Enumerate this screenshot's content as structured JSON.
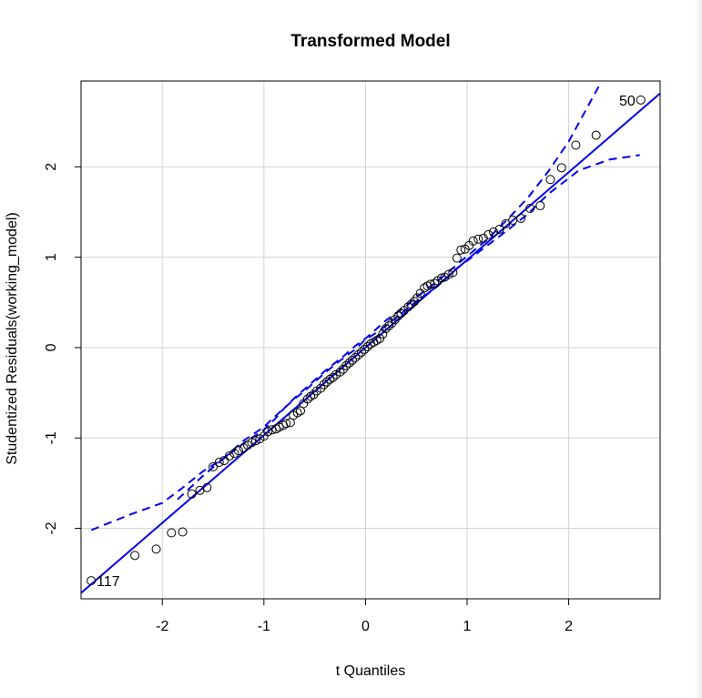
{
  "chart_data": {
    "type": "scatter",
    "title": "Transformed Model",
    "xlabel": "t Quantiles",
    "ylabel": "Studentized Residuals(working_model)",
    "xlim": [
      -2.8,
      2.9
    ],
    "ylim": [
      -2.78,
      2.95
    ],
    "xticks": [
      -2,
      -1,
      0,
      1,
      2
    ],
    "yticks": [
      -2,
      -1,
      0,
      1,
      2
    ],
    "grid": true,
    "colors": {
      "points": "#000000",
      "reference": "#0000ee",
      "envelope": "#0000ee",
      "grid": "#d3d3d3"
    },
    "reference_line": {
      "intercept": 0.0,
      "slope": 0.97
    },
    "envelope_upper": {
      "x": [
        -1.85,
        -1.6,
        -1.4,
        -1.2,
        -1.0,
        -0.9,
        -0.8,
        -0.7,
        -0.6,
        -0.5,
        -0.4,
        -0.3,
        -0.2,
        -0.1,
        0.0,
        0.1,
        0.2,
        0.3,
        0.4,
        0.5,
        0.6,
        0.7,
        0.8,
        0.9,
        1.0,
        1.2,
        1.4,
        1.6,
        1.8,
        2.0,
        2.3
      ],
      "y": [
        -1.68,
        -1.42,
        -1.23,
        -1.06,
        -0.91,
        -0.8,
        -0.67,
        -0.56,
        -0.46,
        -0.36,
        -0.26,
        -0.17,
        -0.08,
        0.02,
        0.1,
        0.2,
        0.3,
        0.38,
        0.46,
        0.56,
        0.64,
        0.73,
        0.82,
        0.92,
        1.01,
        1.2,
        1.42,
        1.66,
        1.95,
        2.28,
        2.9
      ]
    },
    "envelope_lower": {
      "x": [
        -2.7,
        -2.3,
        -2.0,
        -1.8,
        -1.6,
        -1.4,
        -1.2,
        -1.0,
        -0.9,
        -0.8,
        -0.7,
        -0.6,
        -0.5,
        -0.4,
        -0.3,
        -0.2,
        -0.1,
        0.0,
        0.1,
        0.2,
        0.3,
        0.4,
        0.5,
        0.6,
        0.7,
        0.8,
        0.9,
        1.0,
        1.2,
        1.4,
        1.6,
        1.8,
        2.1,
        2.4,
        2.7
      ],
      "y": [
        -2.02,
        -1.84,
        -1.72,
        -1.55,
        -1.37,
        -1.23,
        -1.03,
        -0.88,
        -0.77,
        -0.67,
        -0.57,
        -0.48,
        -0.38,
        -0.28,
        -0.19,
        -0.1,
        -0.02,
        0.09,
        0.16,
        0.24,
        0.33,
        0.42,
        0.51,
        0.59,
        0.67,
        0.77,
        0.88,
        0.96,
        1.13,
        1.3,
        1.48,
        1.7,
        1.96,
        2.08,
        2.13
      ]
    },
    "points": {
      "x": [
        -2.7,
        -2.27,
        -2.06,
        -1.91,
        -1.8,
        -1.71,
        -1.63,
        -1.56,
        -1.5,
        -1.44,
        -1.39,
        -1.34,
        -1.29,
        -1.25,
        -1.2,
        -1.16,
        -1.12,
        -1.08,
        -1.04,
        -1.0,
        -0.96,
        -0.92,
        -0.88,
        -0.85,
        -0.81,
        -0.78,
        -0.74,
        -0.71,
        -0.67,
        -0.64,
        -0.61,
        -0.57,
        -0.54,
        -0.51,
        -0.48,
        -0.44,
        -0.41,
        -0.38,
        -0.35,
        -0.32,
        -0.29,
        -0.25,
        -0.22,
        -0.19,
        -0.16,
        -0.13,
        -0.1,
        -0.07,
        -0.04,
        -0.01,
        0.02,
        0.05,
        0.08,
        0.11,
        0.14,
        0.17,
        0.2,
        0.23,
        0.26,
        0.29,
        0.32,
        0.35,
        0.38,
        0.42,
        0.45,
        0.48,
        0.51,
        0.54,
        0.58,
        0.61,
        0.64,
        0.68,
        0.71,
        0.75,
        0.78,
        0.82,
        0.86,
        0.9,
        0.94,
        0.98,
        1.02,
        1.06,
        1.11,
        1.16,
        1.21,
        1.26,
        1.32,
        1.38,
        1.45,
        1.53,
        1.62,
        1.72,
        1.82,
        1.93,
        2.07,
        2.27,
        2.71
      ],
      "y": [
        -2.58,
        -2.3,
        -2.23,
        -2.05,
        -2.04,
        -1.62,
        -1.58,
        -1.55,
        -1.32,
        -1.27,
        -1.25,
        -1.2,
        -1.17,
        -1.14,
        -1.11,
        -1.08,
        -1.05,
        -1.03,
        -1.01,
        -0.98,
        -0.93,
        -0.91,
        -0.9,
        -0.88,
        -0.86,
        -0.84,
        -0.83,
        -0.75,
        -0.72,
        -0.7,
        -0.62,
        -0.57,
        -0.54,
        -0.52,
        -0.48,
        -0.45,
        -0.41,
        -0.38,
        -0.35,
        -0.33,
        -0.3,
        -0.27,
        -0.24,
        -0.2,
        -0.17,
        -0.14,
        -0.11,
        -0.08,
        -0.05,
        -0.02,
        0.01,
        0.04,
        0.06,
        0.08,
        0.1,
        0.15,
        0.21,
        0.24,
        0.27,
        0.31,
        0.35,
        0.38,
        0.41,
        0.45,
        0.48,
        0.51,
        0.55,
        0.6,
        0.66,
        0.68,
        0.7,
        0.71,
        0.74,
        0.77,
        0.78,
        0.81,
        0.83,
        0.99,
        1.08,
        1.09,
        1.13,
        1.18,
        1.2,
        1.21,
        1.25,
        1.28,
        1.31,
        1.37,
        1.41,
        1.43,
        1.54,
        1.57,
        1.86,
        1.99,
        2.24,
        2.35,
        2.74
      ]
    },
    "point_labels": [
      {
        "text": "117",
        "x": -2.7,
        "y": -2.58,
        "side": "right"
      },
      {
        "text": "50",
        "x": 2.71,
        "y": 2.74,
        "side": "left"
      }
    ]
  }
}
